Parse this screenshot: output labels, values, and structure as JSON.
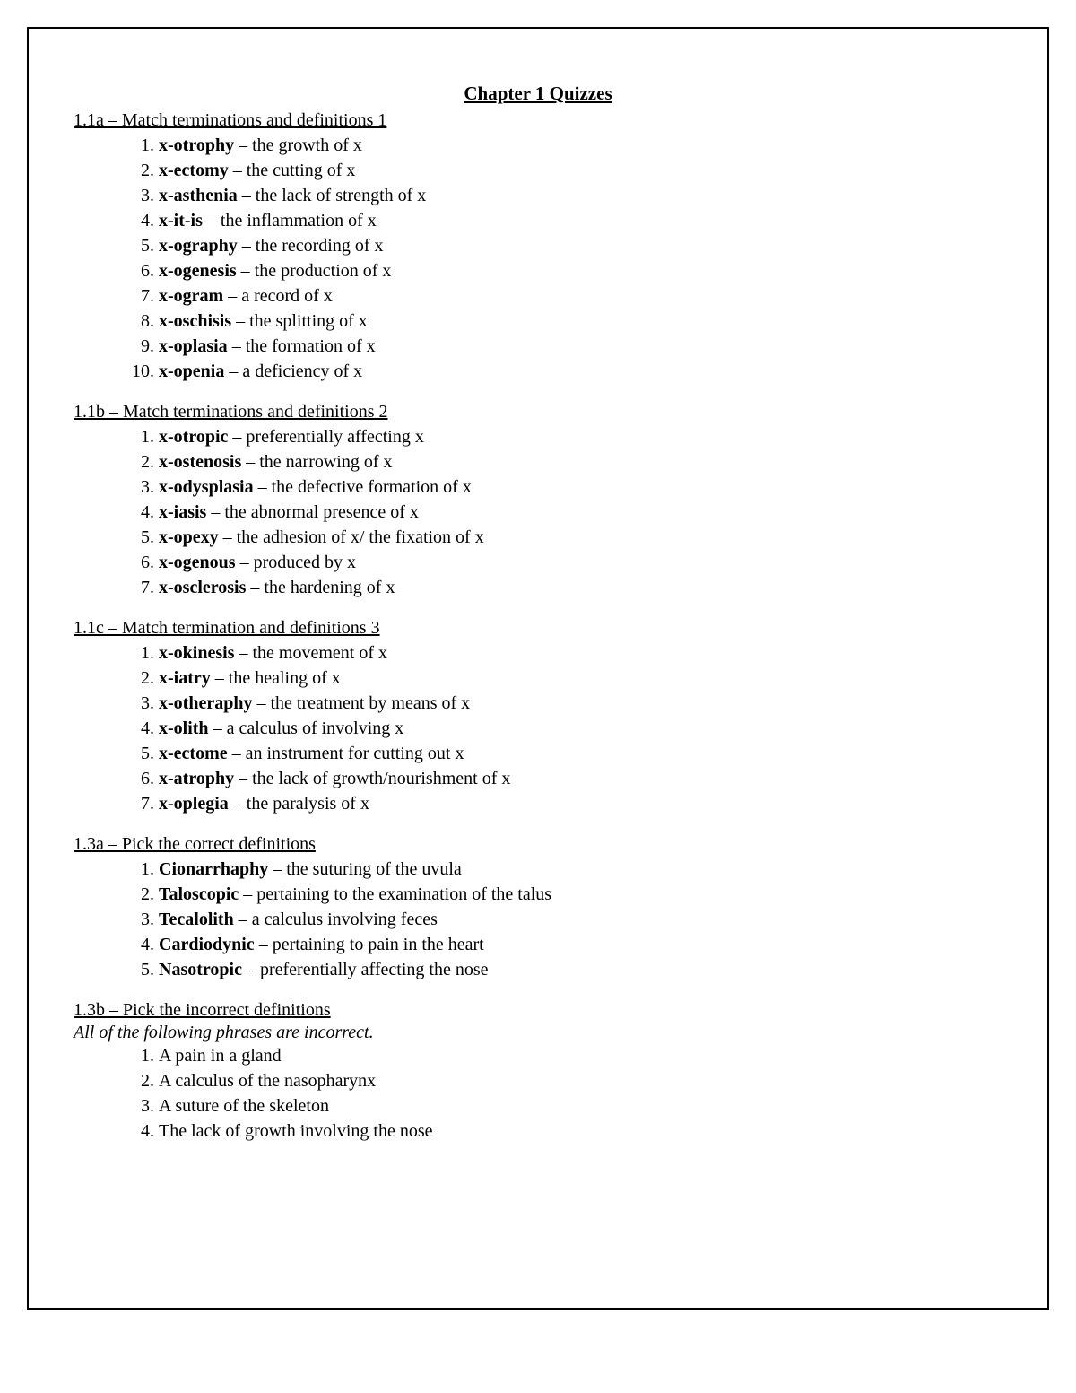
{
  "page": {
    "title": "Chapter 1 Quizzes",
    "background_color": "#ffffff",
    "border_color": "#000000",
    "text_color": "#000000",
    "font_family": "Times New Roman",
    "title_fontsize": 21,
    "body_fontsize": 20
  },
  "sections": [
    {
      "heading": "1.1a – Match terminations and definitions 1",
      "items": [
        {
          "num": "1.",
          "term": "x-otrophy",
          "sep": " – ",
          "def": "the growth of x"
        },
        {
          "num": "2.",
          "term": "x-ectomy",
          "sep": " – ",
          "def": "the cutting of x"
        },
        {
          "num": "3.",
          "term": "x-asthenia",
          "sep": " – ",
          "def": "the lack of strength of x"
        },
        {
          "num": "4.",
          "term": "x-it-is",
          "sep": " – ",
          "def": "the inflammation of x"
        },
        {
          "num": "5.",
          "term": "x-ography",
          "sep": " – ",
          "def": "the recording of x"
        },
        {
          "num": "6.",
          "term": "x-ogenesis",
          "sep": " – ",
          "def": "the production of x"
        },
        {
          "num": "7.",
          "term": "x-ogram",
          "sep": " – ",
          "def": "a record of x"
        },
        {
          "num": "8.",
          "term": "x-oschisis",
          "sep": " – ",
          "def": "the splitting of x"
        },
        {
          "num": "9.",
          "term": "x-oplasia",
          "sep": " – ",
          "def": "the formation of x"
        },
        {
          "num": "10.",
          "term": "x-openia",
          "sep": " – ",
          "def": "a deficiency of x"
        }
      ]
    },
    {
      "heading": "1.1b – Match terminations and definitions 2",
      "items": [
        {
          "num": "1.",
          "term": "x-otropic",
          "sep": " – ",
          "def": "preferentially affecting x"
        },
        {
          "num": "2.",
          "term": "x-ostenosis",
          "sep": " – ",
          "def": "the narrowing of x"
        },
        {
          "num": "3.",
          "term": "x-odysplasia",
          "sep": " – ",
          "def": "the defective formation of x"
        },
        {
          "num": "4.",
          "term": "x-iasis",
          "sep": " – ",
          "def": "the abnormal presence of x"
        },
        {
          "num": "5.",
          "term": "x-opexy",
          "sep": " – ",
          "def": "the adhesion of x/ the fixation of x"
        },
        {
          "num": "6.",
          "term": "x-ogenous",
          "sep": " – ",
          "def": "produced by x"
        },
        {
          "num": "7.",
          "term": "x-osclerosis",
          "sep": " – ",
          "def": "the hardening of x"
        }
      ]
    },
    {
      "heading": "1.1c – Match termination and definitions 3",
      "items": [
        {
          "num": "1.",
          "term": "x-okinesis",
          "sep": " – ",
          "def": "the movement of x"
        },
        {
          "num": "2.",
          "term": "x-iatry",
          "sep": " – ",
          "def": "the healing of x"
        },
        {
          "num": "3.",
          "term": "x-otheraphy",
          "sep": " – ",
          "def": "the treatment by means of x"
        },
        {
          "num": "4.",
          "term": "x-olith",
          "sep": " – ",
          "def": "a calculus of involving x"
        },
        {
          "num": "5.",
          "term": "x-ectome",
          "sep": " – ",
          "def": "an instrument for cutting out x"
        },
        {
          "num": "6.",
          "term": "x-atrophy",
          "sep": " – ",
          "def": "the lack of growth/nourishment of x"
        },
        {
          "num": "7.",
          "term": "x-oplegia",
          "sep": " – ",
          "def": "the paralysis of x"
        }
      ]
    },
    {
      "heading": "1.3a – Pick the correct definitions",
      "items": [
        {
          "num": "1.",
          "term": "Cionarrhaphy",
          "sep": " – ",
          "def": "the suturing of the uvula"
        },
        {
          "num": "2.",
          "term": "Taloscopic",
          "sep": " – ",
          "def": "pertaining to the examination of the talus"
        },
        {
          "num": "3.",
          "term": "Tecalolith",
          "sep": " – ",
          "def": "a calculus involving feces"
        },
        {
          "num": "4.",
          "term": "Cardiodynic",
          "sep": " – ",
          "def": "pertaining to pain in the heart"
        },
        {
          "num": "5.",
          "term": " Nasotropic",
          "sep": " – ",
          "def": "preferentially affecting the nose"
        }
      ]
    },
    {
      "heading": "1.3b – Pick the incorrect definitions",
      "note": "All of the following phrases are incorrect.",
      "items": [
        {
          "num": "1.",
          "term": "",
          "sep": "",
          "def": "A pain in a gland"
        },
        {
          "num": "2.",
          "term": "",
          "sep": "",
          "def": "A calculus of the nasopharynx"
        },
        {
          "num": "3.",
          "term": "",
          "sep": "",
          "def": "A suture of the skeleton"
        },
        {
          "num": "4.",
          "term": "",
          "sep": "",
          "def": "The lack of growth involving the nose"
        }
      ]
    }
  ]
}
